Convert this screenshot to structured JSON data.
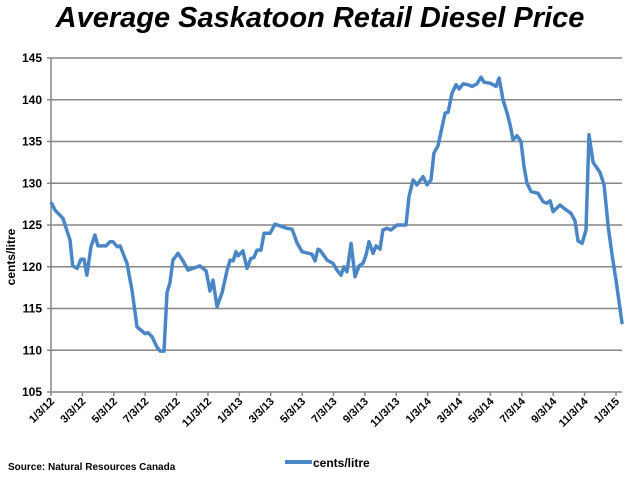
{
  "chart_data": {
    "type": "line",
    "title": "Average Saskatoon Retail Diesel Price",
    "xlabel": "",
    "ylabel": "cents/litre",
    "ylim": [
      105,
      145
    ],
    "yticks": [
      105,
      110,
      115,
      120,
      125,
      130,
      135,
      140,
      145
    ],
    "x_units": "months since 1/3/12",
    "xlim": [
      0,
      36.4
    ],
    "xtick_labels": [
      "1/3/12",
      "3/3/12",
      "5/3/12",
      "7/3/12",
      "9/3/12",
      "11/3/12",
      "1/3/13",
      "3/3/13",
      "5/3/13",
      "7/3/13",
      "9/3/13",
      "11/3/13",
      "1/3/14",
      "3/3/14",
      "5/3/14",
      "7/3/14",
      "9/3/14",
      "11/3/14",
      "1/3/15"
    ],
    "grid": true,
    "legend_position": "bottom",
    "source": "Source: Natural Resources Canada",
    "color": "#4a86c5",
    "series": [
      {
        "name": "cents/litre",
        "x": [
          0.04,
          0.25,
          0.76,
          1.21,
          1.38,
          1.66,
          1.91,
          2.1,
          2.29,
          2.55,
          2.8,
          2.99,
          3.5,
          3.76,
          3.95,
          4.21,
          4.4,
          4.84,
          5.16,
          5.48,
          5.99,
          6.18,
          6.44,
          6.75,
          6.95,
          7.2,
          7.39,
          7.58,
          7.77,
          8.09,
          8.41,
          8.73,
          9.05,
          9.49,
          9.88,
          10.13,
          10.32,
          10.58,
          10.9,
          11.22,
          11.41,
          11.6,
          11.79,
          11.92,
          12.23,
          12.49,
          12.74,
          12.93,
          13.12,
          13.38,
          13.57,
          13.96,
          14.27,
          15.04,
          15.36,
          15.67,
          15.99,
          16.63,
          16.82,
          17.01,
          17.14,
          17.59,
          17.97,
          18.22,
          18.48,
          18.67,
          18.86,
          19.12,
          19.37,
          19.63,
          19.88,
          20.07,
          20.26,
          20.52,
          20.71,
          20.96,
          21.15,
          21.41,
          21.66,
          22.05,
          22.62,
          22.81,
          23.07,
          23.32,
          23.7,
          23.96,
          24.21,
          24.4,
          24.66,
          25.11,
          25.3,
          25.55,
          25.81,
          26.0,
          26.25,
          26.57,
          26.83,
          27.14,
          27.4,
          27.59,
          27.97,
          28.36,
          28.55,
          28.8,
          29.06,
          29.25,
          29.44,
          29.69,
          29.95,
          30.14,
          30.33,
          30.59,
          31.03,
          31.35,
          31.6,
          31.8,
          31.99,
          32.43,
          32.75,
          33.13,
          33.39,
          33.58,
          33.84,
          34.09,
          34.28,
          34.54,
          34.98,
          35.24,
          35.5,
          35.75,
          36.0,
          36.38
        ],
        "y": [
          127.6,
          126.8,
          125.8,
          123.2,
          120.1,
          119.8,
          120.9,
          120.9,
          119.0,
          122.4,
          123.8,
          122.5,
          122.5,
          123.0,
          123.0,
          122.4,
          122.5,
          120.4,
          117.2,
          112.8,
          112.0,
          112.1,
          111.6,
          110.4,
          109.9,
          109.9,
          116.9,
          118.1,
          120.8,
          121.6,
          120.7,
          119.6,
          119.8,
          120.1,
          119.5,
          117.1,
          118.4,
          115.2,
          116.9,
          119.6,
          120.8,
          120.7,
          121.8,
          121.3,
          121.9,
          119.8,
          121.0,
          121.1,
          122.0,
          122.0,
          124.0,
          124.0,
          125.1,
          124.6,
          124.5,
          122.9,
          121.8,
          121.5,
          120.7,
          122.1,
          122.0,
          120.8,
          120.4,
          119.6,
          119.0,
          120.0,
          119.4,
          122.8,
          118.8,
          120.1,
          120.4,
          121.4,
          123.0,
          121.6,
          122.5,
          122.1,
          124.4,
          124.6,
          124.4,
          125.0,
          125.0,
          128.4,
          130.4,
          129.8,
          130.8,
          129.8,
          130.4,
          133.6,
          134.5,
          138.4,
          138.5,
          140.8,
          141.8,
          141.3,
          141.9,
          141.8,
          141.6,
          141.9,
          142.7,
          142.1,
          142.0,
          141.6,
          142.6,
          140.0,
          138.4,
          137.0,
          135.2,
          135.7,
          135.0,
          132.0,
          130.0,
          129.0,
          128.8,
          127.8,
          127.6,
          127.9,
          126.6,
          127.4,
          126.9,
          126.4,
          125.5,
          123.1,
          122.8,
          124.4,
          135.8,
          132.5,
          131.3,
          129.8,
          124.8,
          121.4,
          118.4,
          113.3
        ]
      }
    ]
  }
}
